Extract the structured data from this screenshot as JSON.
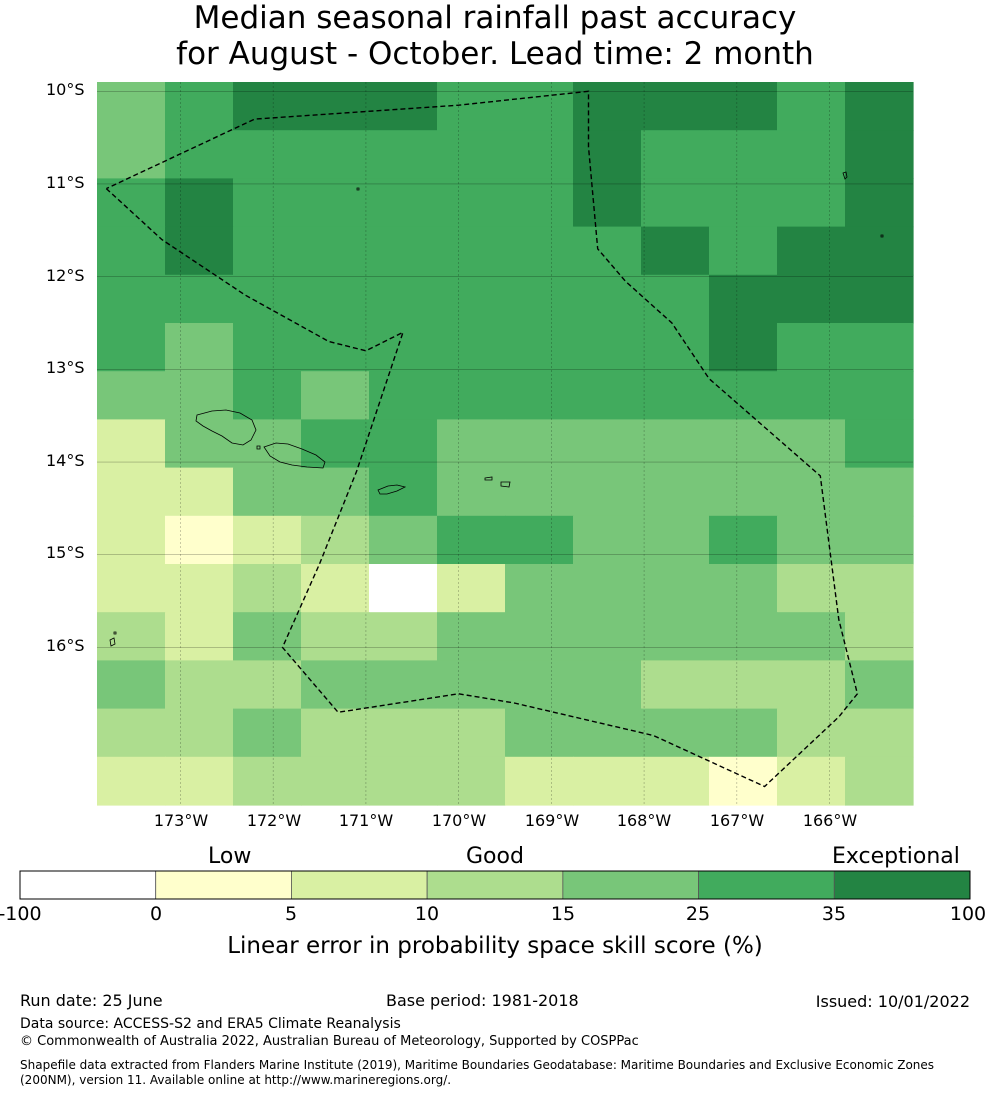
{
  "title": {
    "line1": "Median seasonal rainfall past accuracy",
    "line2": "for August - October. Lead time: 2 month"
  },
  "map": {
    "lat_labels": [
      "10°S",
      "11°S",
      "12°S",
      "13°S",
      "14°S",
      "15°S",
      "16°S"
    ],
    "lon_labels": [
      "173°W",
      "172°W",
      "171°W",
      "170°W",
      "169°W",
      "168°W",
      "167°W",
      "166°W"
    ],
    "lon_range": [
      -173.9,
      -165.1
    ],
    "lat_range": [
      -17.7,
      -9.9
    ],
    "grid_lat": [
      -10,
      -11,
      -12,
      -13,
      -14,
      -15,
      -16
    ],
    "grid_lon": [
      -173,
      -172,
      -171,
      -170,
      -169,
      -168,
      -167,
      -166
    ],
    "skill_colors": [
      "#ffffff",
      "#ffffcc",
      "#d9f0a3",
      "#addd8e",
      "#78c679",
      "#41ab5d",
      "#238443"
    ],
    "skill_grid": [
      [
        4,
        5,
        6,
        6,
        6,
        5,
        5,
        6,
        6,
        6,
        5,
        6
      ],
      [
        4,
        5,
        5,
        5,
        5,
        5,
        5,
        6,
        5,
        5,
        5,
        6
      ],
      [
        5,
        6,
        5,
        5,
        5,
        5,
        5,
        6,
        5,
        5,
        5,
        6
      ],
      [
        5,
        6,
        5,
        5,
        5,
        5,
        5,
        5,
        6,
        5,
        6,
        6
      ],
      [
        5,
        5,
        5,
        5,
        5,
        5,
        5,
        5,
        5,
        6,
        6,
        6
      ],
      [
        5,
        4,
        5,
        5,
        5,
        5,
        5,
        5,
        5,
        6,
        5,
        5
      ],
      [
        4,
        4,
        5,
        4,
        5,
        5,
        5,
        5,
        5,
        5,
        5,
        5
      ],
      [
        2,
        4,
        4,
        5,
        5,
        4,
        4,
        4,
        4,
        4,
        4,
        5
      ],
      [
        2,
        2,
        4,
        4,
        5,
        4,
        4,
        4,
        4,
        4,
        4,
        4
      ],
      [
        2,
        1,
        2,
        3,
        4,
        5,
        5,
        4,
        4,
        5,
        4,
        4
      ],
      [
        2,
        2,
        3,
        2,
        0,
        2,
        4,
        4,
        4,
        4,
        3,
        3
      ],
      [
        3,
        2,
        4,
        3,
        3,
        4,
        4,
        4,
        4,
        4,
        4,
        3
      ],
      [
        4,
        3,
        3,
        4,
        4,
        4,
        4,
        4,
        3,
        3,
        3,
        4
      ],
      [
        3,
        3,
        4,
        3,
        3,
        3,
        4,
        4,
        4,
        4,
        3,
        3
      ],
      [
        2,
        2,
        3,
        3,
        3,
        3,
        2,
        2,
        2,
        1,
        2,
        3
      ]
    ],
    "eez_boundary": [
      [
        -173.8,
        -11.05
      ],
      [
        -173.2,
        -11.6
      ],
      [
        -172.3,
        -12.2
      ],
      [
        -171.4,
        -12.7
      ],
      [
        -171.0,
        -12.8
      ],
      [
        -170.6,
        -12.6
      ],
      [
        -171.1,
        -14.1
      ],
      [
        -171.5,
        -15.1
      ],
      [
        -171.9,
        -16.0
      ],
      [
        -171.3,
        -16.7
      ],
      [
        -170.0,
        -16.5
      ],
      [
        -169.4,
        -16.6
      ],
      [
        -167.9,
        -16.95
      ],
      [
        -166.7,
        -17.5
      ],
      [
        -165.9,
        -16.75
      ],
      [
        -165.7,
        -16.5
      ],
      [
        -165.9,
        -15.7
      ],
      [
        -166.1,
        -14.15
      ],
      [
        -167.3,
        -13.1
      ],
      [
        -167.7,
        -12.5
      ],
      [
        -168.2,
        -12.05
      ],
      [
        -168.5,
        -11.7
      ],
      [
        -168.6,
        -10.6
      ],
      [
        -168.6,
        -10.0
      ],
      [
        -170.0,
        -10.15
      ],
      [
        -172.2,
        -10.3
      ],
      [
        -173.8,
        -11.05
      ]
    ]
  },
  "colorbar": {
    "categories": [
      "Low",
      "Good",
      "Exceptional"
    ],
    "colors": [
      "#ffffff",
      "#ffffcc",
      "#d9f0a3",
      "#addd8e",
      "#78c679",
      "#41ab5d",
      "#238443"
    ],
    "ticks": [
      "-100",
      "0",
      "5",
      "10",
      "15",
      "25",
      "35",
      "100"
    ],
    "label": "Linear error in probability space skill score (%)"
  },
  "footer": {
    "run_date": "Run date: 25 June",
    "base_period": "Base period: 1981-2018",
    "issued": "Issued: 10/01/2022",
    "data_source": "Data source: ACCESS-S2 and ERA5 Climate Reanalysis",
    "copyright": "© Commonwealth of Australia 2022, Australian Bureau of Meteorology, Supported by COSPPac",
    "shapefile_line1": "Shapefile data extracted from Flanders Marine Institute (2019), Maritime Boundaries Geodatabase: Maritime Boundaries and Exclusive Economic Zones",
    "shapefile_line2": "(200NM), version 11. Available online at http://www.marineregions.org/."
  }
}
